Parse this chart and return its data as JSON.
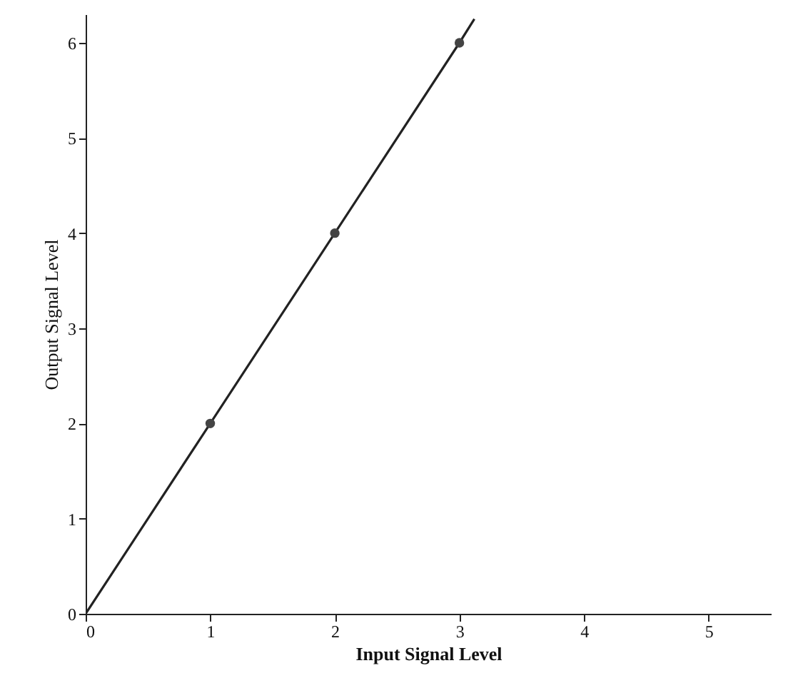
{
  "chart_data": {
    "type": "line",
    "xlabel": "Input Signal Level",
    "ylabel": "Output Signal Level",
    "xlim": [
      0,
      5.5
    ],
    "ylim": [
      0,
      6.3
    ],
    "xticks": [
      0,
      1,
      2,
      3,
      4,
      5
    ],
    "yticks": [
      0,
      1,
      2,
      3,
      4,
      5,
      6
    ],
    "grid": false,
    "series": [
      {
        "color": "#222222",
        "x": [
          0,
          1,
          2,
          3,
          3.12
        ],
        "values": [
          0,
          2,
          4,
          6,
          6.25
        ],
        "marker": "none",
        "line_style": "solid"
      },
      {
        "type": "scatter",
        "color": "#444444",
        "x": [
          1,
          2,
          3
        ],
        "values": [
          2,
          4,
          6
        ],
        "marker": "circle"
      }
    ]
  }
}
